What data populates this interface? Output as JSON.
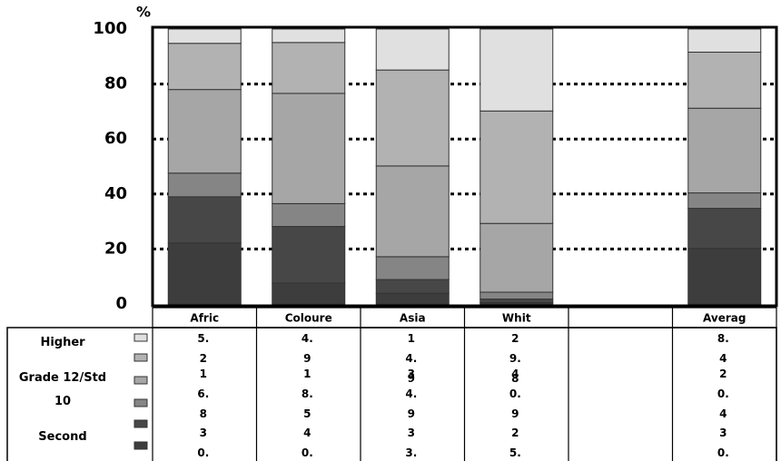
{
  "chart_data": {
    "type": "stacked_bar",
    "categories": [
      "Afric",
      "Coloure",
      "Asia",
      "Whit",
      null,
      "Averag"
    ],
    "series": [
      {
        "name": "Higher",
        "color": "#e0e0e0",
        "values": [
          5.2,
          4.9,
          14.9,
          29.8,
          null,
          8.4
        ]
      },
      {
        "name": "Grade 12/Std 10",
        "color": "#b2b2b2",
        "values": [
          16.8,
          18.5,
          34.9,
          40.9,
          null,
          20.4
        ]
      },
      {
        "name": "Second",
        "color": "#a6a6a6",
        "values": [
          30.4,
          40.1,
          33,
          25,
          null,
          30.8
        ],
        "value_labels": [
          null,
          null,
          "33.",
          "25.",
          null,
          null
        ]
      },
      {
        "color": "#858585",
        "values": [
          8.6,
          8.3,
          8.3,
          2.5,
          null,
          5.6
        ]
      },
      {
        "color": "#474747",
        "values": [
          16.8,
          20.6,
          5,
          1.3,
          null,
          14.6
        ]
      },
      {
        "color": "#3d3d3d",
        "values": [
          22.2,
          7.6,
          3.9,
          0.5,
          null,
          20.2
        ]
      }
    ],
    "y_unit": "%",
    "ylim": [
      0,
      100
    ],
    "yticks": [
      0,
      20,
      40,
      60,
      80,
      100
    ],
    "grid": true
  }
}
